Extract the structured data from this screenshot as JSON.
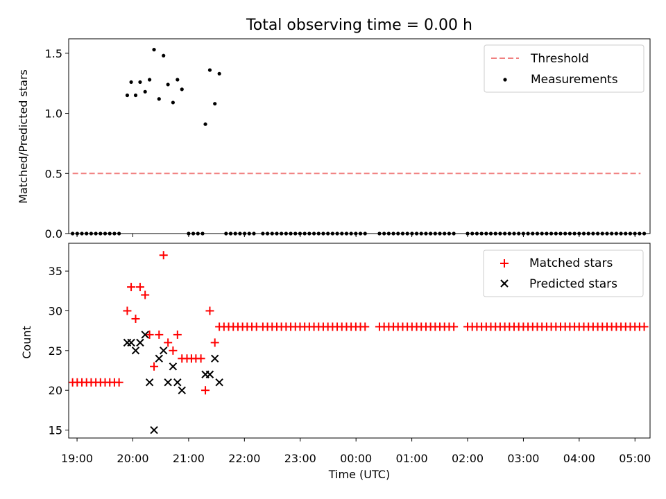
{
  "figure": {
    "title": "Total observing time = 0.00 h"
  },
  "chart_data": [
    {
      "type": "scatter",
      "panel": "top",
      "xlabel": "",
      "ylabel": "Matched/Predicted stars",
      "xlim": [
        18.85,
        29.27
      ],
      "ylim": [
        0,
        1.62
      ],
      "yticks": [
        0.0,
        0.5,
        1.0,
        1.5
      ],
      "ytick_labels": [
        "0.0",
        "0.5",
        "1.0",
        "1.5"
      ],
      "legend": "top-right",
      "grid": false,
      "series": [
        {
          "name": "Threshold",
          "kind": "dashed-line",
          "color": "#f08080",
          "x": [
            18.92,
            29.1
          ],
          "y": [
            0.5,
            0.5
          ]
        },
        {
          "name": "Measurements",
          "kind": "dots",
          "color": "#000000",
          "x": [
            19.9,
            19.97,
            20.05,
            20.13,
            20.22,
            20.3,
            20.38,
            20.47,
            20.55,
            20.63,
            20.72,
            20.8,
            20.88,
            21.3,
            21.38,
            21.47,
            21.55
          ],
          "y": [
            1.15,
            1.26,
            1.15,
            1.26,
            1.18,
            1.28,
            1.53,
            1.12,
            1.48,
            1.24,
            1.09,
            1.28,
            1.2,
            0.91,
            1.36,
            1.08,
            1.33
          ]
        }
      ],
      "zero_runs": [
        {
          "start": 18.92,
          "end": 19.83,
          "step": 0.0833
        },
        {
          "start": 21.0,
          "end": 21.25,
          "step": 0.0833
        },
        {
          "start": 21.67,
          "end": 22.25,
          "step": 0.0833
        },
        {
          "start": 22.33,
          "end": 24.17,
          "step": 0.0833
        },
        {
          "start": 24.42,
          "end": 25.83,
          "step": 0.0833
        },
        {
          "start": 26.0,
          "end": 29.17,
          "step": 0.0833
        }
      ]
    },
    {
      "type": "scatter",
      "panel": "bottom",
      "xlabel": "Time (UTC)",
      "ylabel": "Count",
      "xlim": [
        18.85,
        29.27
      ],
      "ylim": [
        14,
        38.5
      ],
      "yticks": [
        15,
        20,
        25,
        30,
        35
      ],
      "ytick_labels": [
        "15",
        "20",
        "25",
        "30",
        "35"
      ],
      "xticks": [
        19,
        20,
        21,
        22,
        23,
        24,
        25,
        26,
        27,
        28,
        29
      ],
      "xtick_labels": [
        "19:00",
        "20:00",
        "21:00",
        "22:00",
        "23:00",
        "00:00",
        "01:00",
        "02:00",
        "03:00",
        "04:00",
        "05:00"
      ],
      "legend": "top-right",
      "grid": false,
      "series": [
        {
          "name": "Matched stars",
          "kind": "plus",
          "color": "#ff0000",
          "x": [
            19.9,
            19.97,
            20.05,
            20.13,
            20.22,
            20.3,
            20.38,
            20.47,
            20.55,
            20.63,
            20.72,
            20.8,
            20.88,
            20.97,
            21.05,
            21.13,
            21.22,
            21.3,
            21.38,
            21.47
          ],
          "y": [
            30,
            33,
            29,
            33,
            32,
            27,
            23,
            27,
            37,
            26,
            25,
            27,
            24,
            24,
            24,
            24,
            24,
            20,
            30,
            26
          ]
        },
        {
          "name": "Predicted stars",
          "kind": "x",
          "color": "#000000",
          "x": [
            19.9,
            19.97,
            20.05,
            20.13,
            20.22,
            20.3,
            20.38,
            20.47,
            20.55,
            20.63,
            20.72,
            20.8,
            20.88,
            21.3,
            21.38,
            21.47,
            21.55
          ],
          "y": [
            26,
            26,
            25,
            26,
            27,
            21,
            15,
            24,
            25,
            21,
            23,
            21,
            20,
            22,
            22,
            24,
            21
          ]
        }
      ],
      "matched_runs": [
        {
          "start": 18.92,
          "end": 19.83,
          "step": 0.0833,
          "value": 21
        },
        {
          "start": 21.55,
          "end": 22.25,
          "step": 0.0833,
          "value": 28
        },
        {
          "start": 22.33,
          "end": 24.17,
          "step": 0.0833,
          "value": 28
        },
        {
          "start": 24.42,
          "end": 25.83,
          "step": 0.0833,
          "value": 28
        },
        {
          "start": 26.0,
          "end": 29.17,
          "step": 0.0833,
          "value": 28
        }
      ]
    }
  ]
}
